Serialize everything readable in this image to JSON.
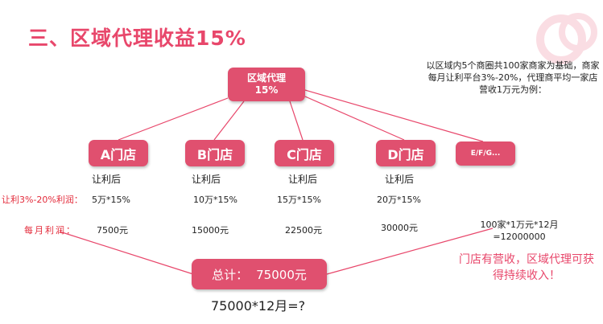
{
  "title": "三、区域代理收益15%",
  "root": {
    "line1": "区域代理",
    "line2": "15%"
  },
  "description": "以区域内5个商圈共100家商家为基础，商家每月让利平台3%-20%，代理商平均一家店营收1万元为例：",
  "row_labels": {
    "profit_rate": "让利3%-20%利润：",
    "monthly_profit": "每月利润："
  },
  "stores": [
    {
      "name": "A门店",
      "after": "让利后",
      "calc": "5万*15%",
      "profit": "7500元"
    },
    {
      "name": "B门店",
      "after": "让利后",
      "calc": "10万*15%",
      "profit": "15000元"
    },
    {
      "name": "C门店",
      "after": "让利后",
      "calc": "15万*15%",
      "profit": "22500元"
    },
    {
      "name": "D门店",
      "after": "让利后",
      "calc": "20万*15%",
      "profit": "30000元"
    }
  ],
  "others": "E/F/G...",
  "formula": {
    "line1": "100家*1万元*12月",
    "line2": "=12000000"
  },
  "note": "门店有营收，区域代理可获得持续收入！",
  "total": {
    "label": "总计：",
    "value": "75000元"
  },
  "question": "75000*12月=?",
  "colors": {
    "accent": "#e0506f",
    "title": "#e8476b",
    "red_text": "#e32a3a",
    "connector": "#e8476b"
  }
}
